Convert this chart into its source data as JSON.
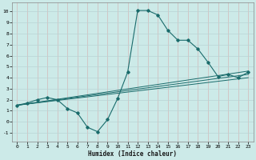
{
  "xlabel": "Humidex (Indice chaleur)",
  "bg_color": "#cceae8",
  "line_color": "#1a6b6b",
  "grid_color_v": "#d4b8b8",
  "grid_color_h": "#b8d4d4",
  "xlim": [
    -0.5,
    23.5
  ],
  "ylim": [
    -1.8,
    10.8
  ],
  "xticks": [
    0,
    1,
    2,
    3,
    4,
    5,
    6,
    7,
    8,
    9,
    10,
    11,
    12,
    13,
    14,
    15,
    16,
    17,
    18,
    19,
    20,
    21,
    22,
    23
  ],
  "yticks": [
    -1,
    0,
    1,
    2,
    3,
    4,
    5,
    6,
    7,
    8,
    9,
    10
  ],
  "main_x": [
    0,
    1,
    2,
    3,
    4,
    5,
    6,
    7,
    8,
    9,
    10,
    11,
    12,
    13,
    14,
    15,
    16,
    17,
    18,
    19,
    20,
    21,
    22,
    23
  ],
  "main_y": [
    1.5,
    1.7,
    2.0,
    2.2,
    2.0,
    1.2,
    0.8,
    -0.5,
    -0.9,
    0.2,
    2.1,
    4.5,
    10.1,
    10.1,
    9.7,
    8.3,
    7.4,
    7.4,
    6.6,
    5.4,
    4.1,
    4.3,
    4.0,
    4.5
  ],
  "trend_lines": [
    {
      "x": [
        0,
        23
      ],
      "y": [
        1.5,
        4.6
      ]
    },
    {
      "x": [
        0,
        23
      ],
      "y": [
        1.5,
        4.3
      ]
    },
    {
      "x": [
        0,
        23
      ],
      "y": [
        1.5,
        4.0
      ]
    }
  ]
}
